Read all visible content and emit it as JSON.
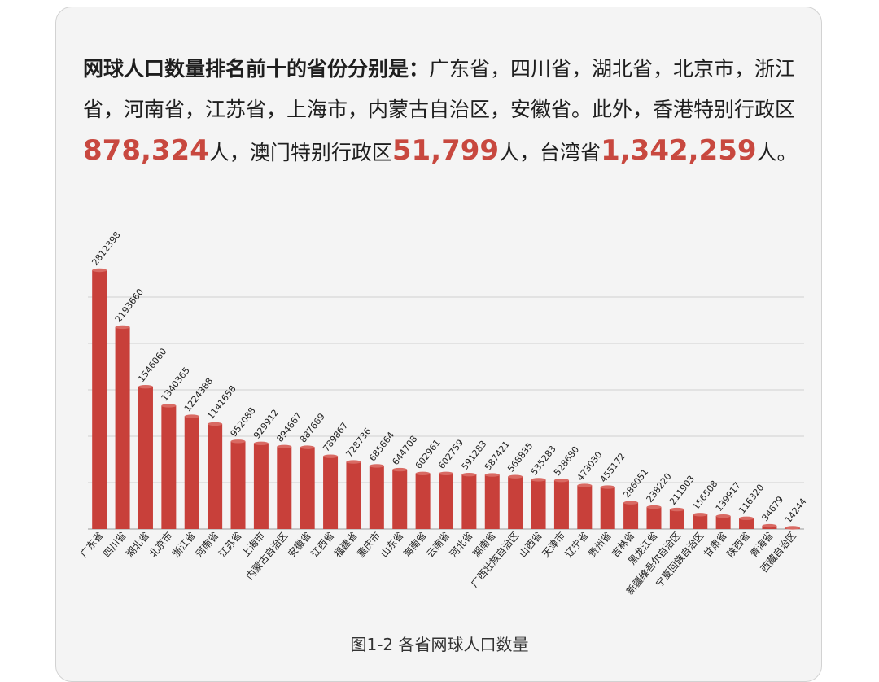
{
  "intro": {
    "lead": "网球人口数量排名前十的省份分别是：",
    "list": "广东省，四川省，湖北省，北京市，浙江省，河南省，江苏省，上海市，内蒙古自治区，安徽省。此外，香港特别行政区",
    "hk_value": "878,324",
    "mid1": "人，澳门特别行政区",
    "macau_value": "51,799",
    "mid2": "人，台湾省",
    "taiwan_value": "1,342,259",
    "end": "人。"
  },
  "caption": "图1-2 各省网球人口数量",
  "colors": {
    "bar": "#c8403a",
    "bar_top": "#d96a63",
    "highlight": "#c8483f",
    "grid": "#cfcfcf"
  },
  "chart_data": {
    "type": "bar",
    "title": "",
    "xlabel": "",
    "ylabel": "",
    "ylim": [
      0,
      2812398
    ],
    "grid": true,
    "categories": [
      "广东省",
      "四川省",
      "湖北省",
      "北京市",
      "浙江省",
      "河南省",
      "江苏省",
      "上海市",
      "内蒙古自治区",
      "安徽省",
      "江西省",
      "福建省",
      "重庆市",
      "山东省",
      "海南省",
      "云南省",
      "河北省",
      "湖南省",
      "广西壮族自治区",
      "山西省",
      "天津市",
      "辽宁省",
      "贵州省",
      "吉林省",
      "黑龙江省",
      "新疆维吾尔自治区",
      "宁夏回族自治区",
      "甘肃省",
      "陕西省",
      "青海省",
      "西藏自治区"
    ],
    "values": [
      2812398,
      2193660,
      1546060,
      1340365,
      1224388,
      1141658,
      952088,
      929912,
      894667,
      887669,
      789867,
      728736,
      685664,
      644708,
      602961,
      602759,
      591283,
      587421,
      568835,
      535283,
      528680,
      473030,
      455172,
      286051,
      238220,
      211903,
      156508,
      139917,
      116320,
      34679,
      14244
    ]
  }
}
